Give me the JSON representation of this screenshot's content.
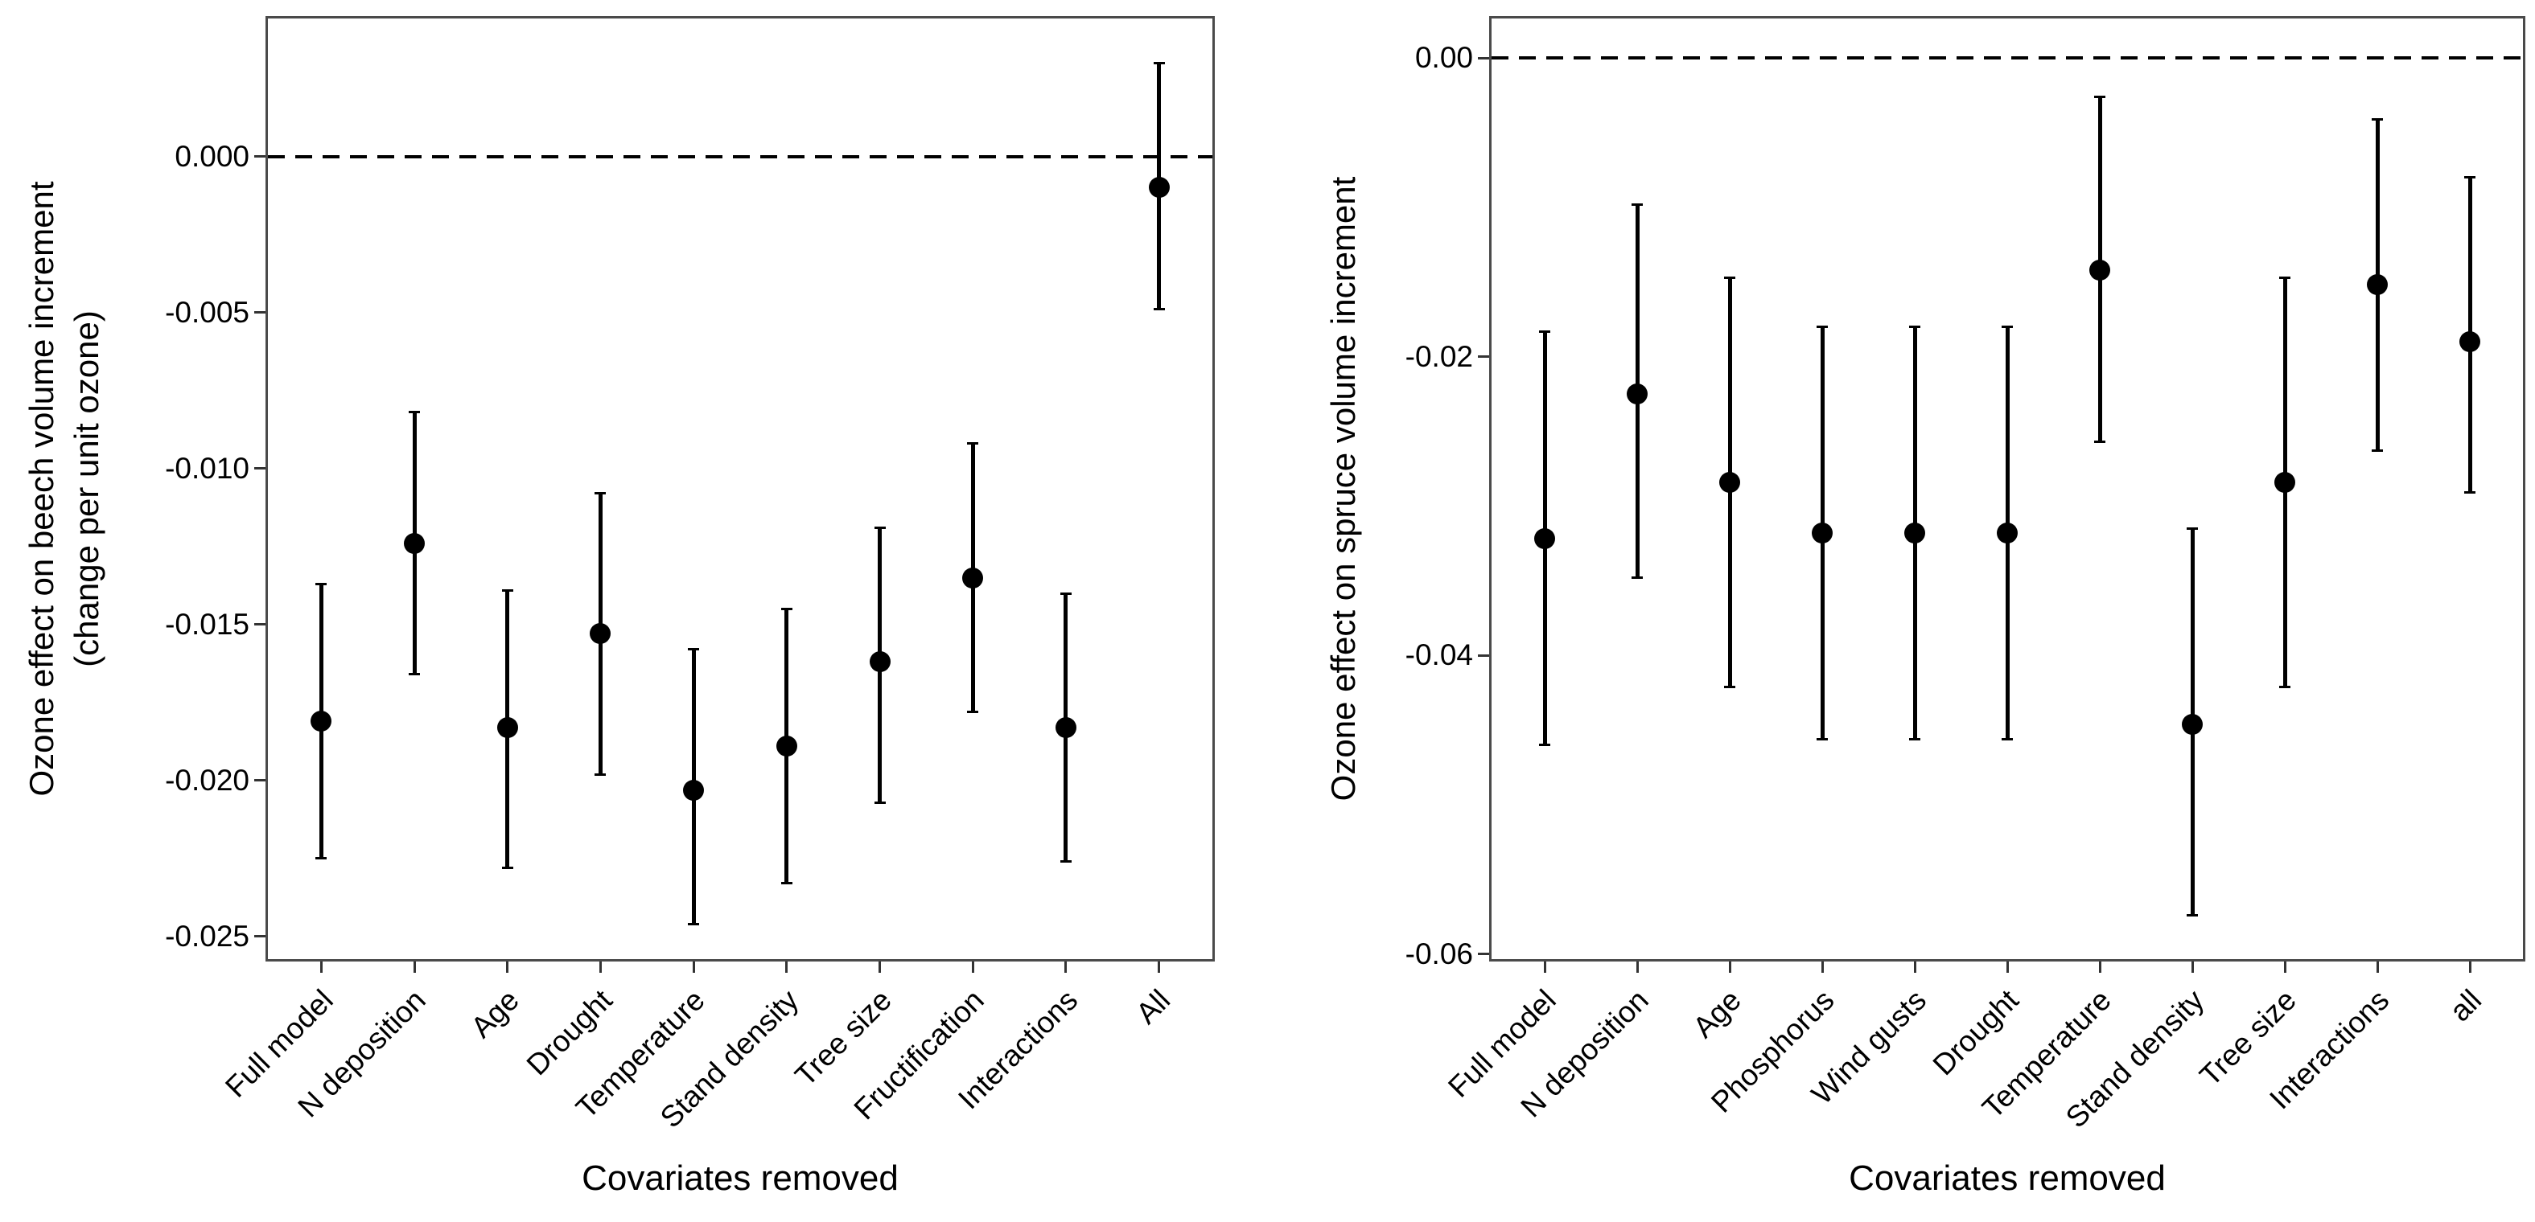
{
  "chart_data": [
    {
      "id": "beech",
      "type": "pointrange",
      "ylabel_lines": [
        "Ozone effect on beech volume increment",
        "(change per unit ozone)"
      ],
      "xlabel": "Covariates removed",
      "reference_line_y": 0,
      "legend": "none",
      "grid": "off",
      "ylim": [
        -0.0258,
        0.0045
      ],
      "yticks": [
        {
          "value": 0,
          "label": "0.000"
        },
        {
          "value": -0.005,
          "label": "-0.005"
        },
        {
          "value": -0.01,
          "label": "-0.010"
        },
        {
          "value": -0.015,
          "label": "-0.015"
        },
        {
          "value": -0.02,
          "label": "-0.020"
        },
        {
          "value": -0.025,
          "label": "-0.025"
        }
      ],
      "categories": [
        "Full model",
        "N deposition",
        "Age",
        "Drought",
        "Temperature",
        "Stand density",
        "Tree size",
        "Fructification",
        "Interactions",
        "All"
      ],
      "points": [
        {
          "category": "Full model",
          "value": -0.0181,
          "ci_low": -0.0225,
          "ci_high": -0.0137
        },
        {
          "category": "N deposition",
          "value": -0.0124,
          "ci_low": -0.0166,
          "ci_high": -0.0082
        },
        {
          "category": "Age",
          "value": -0.0183,
          "ci_low": -0.0228,
          "ci_high": -0.0139
        },
        {
          "category": "Drought",
          "value": -0.0153,
          "ci_low": -0.0198,
          "ci_high": -0.0108
        },
        {
          "category": "Temperature",
          "value": -0.0203,
          "ci_low": -0.0246,
          "ci_high": -0.0158
        },
        {
          "category": "Stand density",
          "value": -0.0189,
          "ci_low": -0.0233,
          "ci_high": -0.0145
        },
        {
          "category": "Tree size",
          "value": -0.0162,
          "ci_low": -0.0207,
          "ci_high": -0.0119
        },
        {
          "category": "Fructification",
          "value": -0.0135,
          "ci_low": -0.0178,
          "ci_high": -0.0092
        },
        {
          "category": "Interactions",
          "value": -0.0183,
          "ci_low": -0.0226,
          "ci_high": -0.014
        },
        {
          "category": "All",
          "value": -0.001,
          "ci_low": -0.0049,
          "ci_high": 0.003
        }
      ]
    },
    {
      "id": "spruce",
      "type": "pointrange",
      "ylabel_lines": [
        "Ozone effect on spruce volume increment"
      ],
      "xlabel": "Covariates removed",
      "reference_line_y": 0,
      "legend": "none",
      "grid": "off",
      "ylim": [
        -0.0605,
        0.0028
      ],
      "yticks": [
        {
          "value": 0,
          "label": "0.00"
        },
        {
          "value": -0.02,
          "label": "-0.02"
        },
        {
          "value": -0.04,
          "label": "-0.04"
        },
        {
          "value": -0.06,
          "label": "-0.06"
        }
      ],
      "categories": [
        "Full model",
        "N deposition",
        "Age",
        "Phosphorus",
        "Wind gusts",
        "Drought",
        "Temperature",
        "Stand density",
        "Tree size",
        "Interactions",
        "all"
      ],
      "points": [
        {
          "category": "Full model",
          "value": -0.0322,
          "ci_low": -0.046,
          "ci_high": -0.0183
        },
        {
          "category": "N deposition",
          "value": -0.0225,
          "ci_low": -0.0348,
          "ci_high": -0.0098
        },
        {
          "category": "Age",
          "value": -0.0284,
          "ci_low": -0.0421,
          "ci_high": -0.0147
        },
        {
          "category": "Phosphorus",
          "value": -0.0318,
          "ci_low": -0.0456,
          "ci_high": -0.018
        },
        {
          "category": "Wind gusts",
          "value": -0.0318,
          "ci_low": -0.0456,
          "ci_high": -0.018
        },
        {
          "category": "Drought",
          "value": -0.0318,
          "ci_low": -0.0456,
          "ci_high": -0.018
        },
        {
          "category": "Temperature",
          "value": -0.0142,
          "ci_low": -0.0257,
          "ci_high": -0.0026
        },
        {
          "category": "Stand density",
          "value": -0.0446,
          "ci_low": -0.0574,
          "ci_high": -0.0315
        },
        {
          "category": "Tree size",
          "value": -0.0284,
          "ci_low": -0.0421,
          "ci_high": -0.0147
        },
        {
          "category": "Interactions",
          "value": -0.0152,
          "ci_low": -0.0263,
          "ci_high": -0.0041
        },
        {
          "category": "all",
          "value": -0.019,
          "ci_low": -0.0291,
          "ci_high": -0.008
        }
      ]
    }
  ],
  "styles": {
    "point_color": "#000000",
    "line_color": "#000000",
    "frame_color": "#4a4a4a",
    "background": "#ffffff",
    "reference_line_style": "dashed"
  }
}
